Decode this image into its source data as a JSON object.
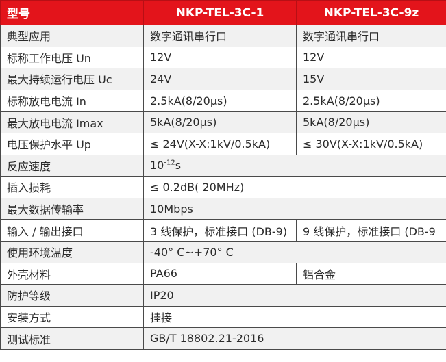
{
  "header": {
    "label": "型号",
    "model_a": "NKP-TEL-3C-1",
    "model_b": "NKP-TEL-3C-9z"
  },
  "rows": [
    {
      "label": "典型应用",
      "a": "数字通讯串行口",
      "b": "数字通讯串行口"
    },
    {
      "label": "标称工作电压 Un",
      "a": "12V",
      "b": "12V"
    },
    {
      "label": "最大持续运行电压 Uc",
      "a": "24V",
      "b": "15V"
    },
    {
      "label": "标称放电电流 In",
      "a": "2.5kA(8/20μs)",
      "b": "2.5kA(8/20μs)"
    },
    {
      "label": "最大放电电流 Imax",
      "a": "5kA(8/20μs)",
      "b": "5kA(8/20μs)"
    },
    {
      "label": "电压保护水平 Up",
      "a": "≤ 24V(X-X:1kV/0.5kA)",
      "b": "≤ 30V(X-X:1kV/0.5kA)"
    },
    {
      "label": "反应速度",
      "base": "10",
      "exp": "-12",
      "unit": "s"
    },
    {
      "label": "插入损耗",
      "value": "≤ 0.2dB( 20MHz)"
    },
    {
      "label": "最大数据传输率",
      "value": "10Mbps"
    },
    {
      "label": "输入 / 输出接口",
      "a": "3 线保护，标准接口 (DB-9)",
      "b": "9 线保护，标准接口 (DB-9"
    },
    {
      "label": "使用环境温度",
      "value": "-40° C~+70° C"
    },
    {
      "label": "外壳材料",
      "a": "PA66",
      "b": "铝合金"
    },
    {
      "label": "防护等级",
      "value": "IP20"
    },
    {
      "label": "安装方式",
      "value": "挂接"
    },
    {
      "label": "测试标准",
      "value": "GB/T 18802.21-2016"
    }
  ]
}
